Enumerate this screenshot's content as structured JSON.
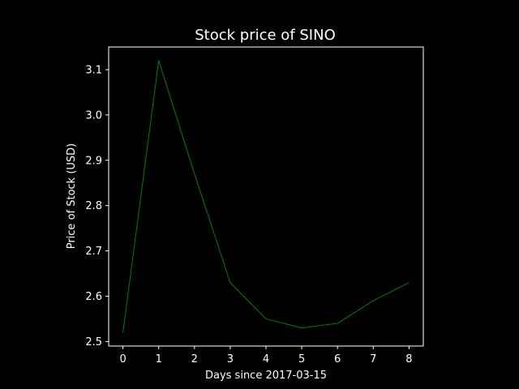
{
  "chart_data": {
    "type": "line",
    "title": "Stock price of SINO",
    "xlabel": "Days since 2017-03-15",
    "ylabel": "Price of Stock (USD)",
    "x": [
      0,
      1,
      2,
      3,
      4,
      5,
      6,
      7,
      8
    ],
    "series": [
      {
        "values": [
          2.52,
          3.12,
          2.87,
          2.63,
          2.55,
          2.53,
          2.54,
          2.59,
          2.63
        ],
        "color": "#008000"
      }
    ],
    "xticks": [
      "0",
      "1",
      "2",
      "3",
      "4",
      "5",
      "6",
      "7",
      "8"
    ],
    "yticks": [
      "2.5",
      "2.6",
      "2.7",
      "2.8",
      "2.9",
      "3.0",
      "3.1"
    ],
    "xlim": [
      -0.4,
      8.4
    ],
    "ylim": [
      2.49,
      3.15
    ],
    "grid": false,
    "legend": "none",
    "colors": {
      "background": "#000000",
      "foreground": "#ffffff",
      "line": "#008000"
    }
  }
}
